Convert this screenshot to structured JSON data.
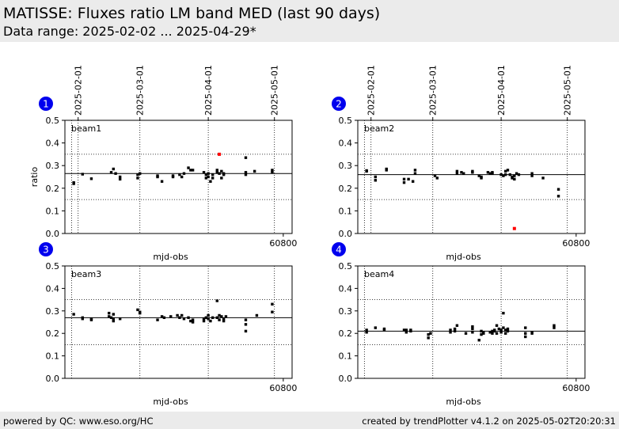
{
  "header": {
    "title": "MATISSE: Fluxes ratio LM band MED (last 90 days)",
    "subtitle": "Data range: 2025-02-02 ... 2025-04-29*"
  },
  "footer": {
    "left": "powered by QC: www.eso.org/HC",
    "right": "created by trendPlotter v4.1.2 on 2025-05-02T20:20:31"
  },
  "colors": {
    "header_bg": "#ebebeb",
    "badge": "#0000ee",
    "point": "#000000",
    "outlier": "#ff0000"
  },
  "chart_data": [
    {
      "type": "scatter",
      "badge": "1",
      "label": "beam1",
      "xlabel": "mjd-obs",
      "ylabel": "ratio",
      "xlim": [
        60701,
        60804
      ],
      "ylim": [
        0,
        0.5
      ],
      "yticks": [
        "0.0",
        "0.1",
        "0.2",
        "0.3",
        "0.4",
        "0.5"
      ],
      "xtick": {
        "value": 60800,
        "label": "60800"
      },
      "date_ticks": [
        {
          "mjd": 60707,
          "label": "2025-02-01"
        },
        {
          "mjd": 60735,
          "label": "2025-03-01"
        },
        {
          "mjd": 60766,
          "label": "2025-04-01"
        },
        {
          "mjd": 60796,
          "label": "2025-05-01"
        },
        {
          "mjd": 60704,
          "label": ""
        }
      ],
      "median": 0.265,
      "limits": [
        0.15,
        0.35
      ],
      "points": [
        [
          60705,
          0.225
        ],
        [
          60705,
          0.22
        ],
        [
          60709,
          0.262
        ],
        [
          60713,
          0.242
        ],
        [
          60722,
          0.27
        ],
        [
          60723,
          0.285
        ],
        [
          60724,
          0.265
        ],
        [
          60726,
          0.25
        ],
        [
          60726,
          0.24
        ],
        [
          60734,
          0.245
        ],
        [
          60734,
          0.26
        ],
        [
          60735,
          0.265
        ],
        [
          60743,
          0.255
        ],
        [
          60743,
          0.25
        ],
        [
          60745,
          0.23
        ],
        [
          60750,
          0.25
        ],
        [
          60750,
          0.255
        ],
        [
          60753,
          0.26
        ],
        [
          60754,
          0.25
        ],
        [
          60755,
          0.265
        ],
        [
          60757,
          0.29
        ],
        [
          60758,
          0.28
        ],
        [
          60759,
          0.28
        ],
        [
          60764,
          0.27
        ],
        [
          60765,
          0.26
        ],
        [
          60765,
          0.245
        ],
        [
          60766,
          0.265
        ],
        [
          60766,
          0.25
        ],
        [
          60767,
          0.23
        ],
        [
          60768,
          0.245
        ],
        [
          60768,
          0.26
        ],
        [
          60770,
          0.28
        ],
        [
          60770,
          0.27
        ],
        [
          60771,
          0.265
        ],
        [
          60772,
          0.245
        ],
        [
          60772,
          0.275
        ],
        [
          60773,
          0.26
        ],
        [
          60773,
          0.265
        ],
        [
          60783,
          0.335
        ],
        [
          60783,
          0.27
        ],
        [
          60783,
          0.26
        ],
        [
          60787,
          0.275
        ],
        [
          60795,
          0.28
        ],
        [
          60795,
          0.27
        ]
      ],
      "outliers": [
        [
          60771,
          0.35
        ]
      ]
    },
    {
      "type": "scatter",
      "badge": "2",
      "label": "beam2",
      "xlabel": "mjd-obs",
      "ylabel": "",
      "xlim": [
        60701,
        60804
      ],
      "ylim": [
        0,
        0.5
      ],
      "yticks": [
        "0.0",
        "0.1",
        "0.2",
        "0.3",
        "0.4",
        "0.5"
      ],
      "xtick": {
        "value": 60800,
        "label": "60800"
      },
      "date_ticks": [
        {
          "mjd": 60707,
          "label": "2025-02-01"
        },
        {
          "mjd": 60735,
          "label": "2025-03-01"
        },
        {
          "mjd": 60766,
          "label": "2025-04-01"
        },
        {
          "mjd": 60796,
          "label": "2025-05-01"
        },
        {
          "mjd": 60704,
          "label": ""
        }
      ],
      "median": 0.26,
      "limits": [
        0.15,
        0.35
      ],
      "points": [
        [
          60705,
          0.278
        ],
        [
          60705,
          0.275
        ],
        [
          60709,
          0.25
        ],
        [
          60709,
          0.235
        ],
        [
          60714,
          0.28
        ],
        [
          60714,
          0.285
        ],
        [
          60722,
          0.24
        ],
        [
          60722,
          0.225
        ],
        [
          60724,
          0.24
        ],
        [
          60726,
          0.23
        ],
        [
          60727,
          0.265
        ],
        [
          60727,
          0.28
        ],
        [
          60736,
          0.255
        ],
        [
          60737,
          0.245
        ],
        [
          60746,
          0.275
        ],
        [
          60746,
          0.265
        ],
        [
          60748,
          0.27
        ],
        [
          60749,
          0.265
        ],
        [
          60753,
          0.275
        ],
        [
          60753,
          0.27
        ],
        [
          60756,
          0.255
        ],
        [
          60757,
          0.25
        ],
        [
          60757,
          0.245
        ],
        [
          60760,
          0.27
        ],
        [
          60761,
          0.265
        ],
        [
          60762,
          0.27
        ],
        [
          60762,
          0.265
        ],
        [
          60766,
          0.26
        ],
        [
          60767,
          0.255
        ],
        [
          60768,
          0.275
        ],
        [
          60768,
          0.26
        ],
        [
          60769,
          0.28
        ],
        [
          60770,
          0.26
        ],
        [
          60771,
          0.25
        ],
        [
          60771,
          0.245
        ],
        [
          60772,
          0.255
        ],
        [
          60772,
          0.24
        ],
        [
          60773,
          0.265
        ],
        [
          60774,
          0.26
        ],
        [
          60780,
          0.265
        ],
        [
          60780,
          0.255
        ],
        [
          60785,
          0.245
        ],
        [
          60792,
          0.195
        ],
        [
          60792,
          0.165
        ]
      ],
      "outliers": [
        [
          60772,
          0.022
        ]
      ]
    },
    {
      "type": "scatter",
      "badge": "3",
      "label": "beam3",
      "xlabel": "mjd-obs",
      "ylabel": "",
      "xlim": [
        60701,
        60804
      ],
      "ylim": [
        0,
        0.5
      ],
      "yticks": [
        "0.0",
        "0.1",
        "0.2",
        "0.3",
        "0.4",
        "0.5"
      ],
      "xtick": {
        "value": 60800,
        "label": "60800"
      },
      "date_ticks": [
        {
          "mjd": 60704,
          "label": ""
        },
        {
          "mjd": 60735,
          "label": ""
        },
        {
          "mjd": 60766,
          "label": ""
        },
        {
          "mjd": 60796,
          "label": ""
        }
      ],
      "median": 0.27,
      "limits": [
        0.15,
        0.35
      ],
      "points": [
        [
          60705,
          0.285
        ],
        [
          60709,
          0.27
        ],
        [
          60709,
          0.265
        ],
        [
          60713,
          0.265
        ],
        [
          60713,
          0.26
        ],
        [
          60721,
          0.29
        ],
        [
          60721,
          0.275
        ],
        [
          60722,
          0.27
        ],
        [
          60723,
          0.285
        ],
        [
          60723,
          0.265
        ],
        [
          60723,
          0.255
        ],
        [
          60726,
          0.265
        ],
        [
          60734,
          0.305
        ],
        [
          60735,
          0.295
        ],
        [
          60735,
          0.29
        ],
        [
          60743,
          0.26
        ],
        [
          60745,
          0.275
        ],
        [
          60746,
          0.27
        ],
        [
          60749,
          0.275
        ],
        [
          60752,
          0.28
        ],
        [
          60753,
          0.27
        ],
        [
          60754,
          0.28
        ],
        [
          60755,
          0.265
        ],
        [
          60757,
          0.27
        ],
        [
          60758,
          0.255
        ],
        [
          60759,
          0.25
        ],
        [
          60759,
          0.26
        ],
        [
          60764,
          0.265
        ],
        [
          60764,
          0.255
        ],
        [
          60765,
          0.27
        ],
        [
          60766,
          0.28
        ],
        [
          60766,
          0.265
        ],
        [
          60767,
          0.255
        ],
        [
          60768,
          0.27
        ],
        [
          60770,
          0.345
        ],
        [
          60770,
          0.27
        ],
        [
          60771,
          0.28
        ],
        [
          60771,
          0.26
        ],
        [
          60772,
          0.275
        ],
        [
          60773,
          0.265
        ],
        [
          60773,
          0.255
        ],
        [
          60774,
          0.275
        ],
        [
          60783,
          0.26
        ],
        [
          60783,
          0.24
        ],
        [
          60783,
          0.21
        ],
        [
          60788,
          0.28
        ],
        [
          60795,
          0.33
        ],
        [
          60795,
          0.295
        ]
      ],
      "outliers": []
    },
    {
      "type": "scatter",
      "badge": "4",
      "label": "beam4",
      "xlabel": "mjd-obs",
      "ylabel": "",
      "xlim": [
        60701,
        60804
      ],
      "ylim": [
        0,
        0.5
      ],
      "yticks": [
        "0.0",
        "0.1",
        "0.2",
        "0.3",
        "0.4",
        "0.5"
      ],
      "xtick": {
        "value": 60800,
        "label": "60800"
      },
      "date_ticks": [
        {
          "mjd": 60704,
          "label": ""
        },
        {
          "mjd": 60735,
          "label": ""
        },
        {
          "mjd": 60766,
          "label": ""
        },
        {
          "mjd": 60796,
          "label": ""
        }
      ],
      "median": 0.21,
      "limits": [
        0.15,
        0.35
      ],
      "points": [
        [
          60705,
          0.215
        ],
        [
          60705,
          0.205
        ],
        [
          60709,
          0.225
        ],
        [
          60713,
          0.22
        ],
        [
          60713,
          0.215
        ],
        [
          60722,
          0.215
        ],
        [
          60723,
          0.205
        ],
        [
          60723,
          0.215
        ],
        [
          60725,
          0.215
        ],
        [
          60725,
          0.21
        ],
        [
          60733,
          0.195
        ],
        [
          60733,
          0.18
        ],
        [
          60734,
          0.2
        ],
        [
          60743,
          0.215
        ],
        [
          60743,
          0.205
        ],
        [
          60745,
          0.22
        ],
        [
          60745,
          0.21
        ],
        [
          60746,
          0.235
        ],
        [
          60750,
          0.2
        ],
        [
          60753,
          0.205
        ],
        [
          60753,
          0.22
        ],
        [
          60753,
          0.23
        ],
        [
          60756,
          0.17
        ],
        [
          60757,
          0.21
        ],
        [
          60757,
          0.195
        ],
        [
          60758,
          0.205
        ],
        [
          60758,
          0.2
        ],
        [
          60761,
          0.205
        ],
        [
          60762,
          0.21
        ],
        [
          60762,
          0.2
        ],
        [
          60763,
          0.215
        ],
        [
          60763,
          0.21
        ],
        [
          60764,
          0.2
        ],
        [
          60764,
          0.235
        ],
        [
          60765,
          0.22
        ],
        [
          60766,
          0.215
        ],
        [
          60766,
          0.205
        ],
        [
          60767,
          0.29
        ],
        [
          60767,
          0.225
        ],
        [
          60768,
          0.215
        ],
        [
          60768,
          0.2
        ],
        [
          60769,
          0.22
        ],
        [
          60769,
          0.21
        ],
        [
          60777,
          0.225
        ],
        [
          60777,
          0.2
        ],
        [
          60777,
          0.185
        ],
        [
          60780,
          0.205
        ],
        [
          60780,
          0.2
        ],
        [
          60790,
          0.235
        ],
        [
          60790,
          0.225
        ]
      ],
      "outliers": []
    }
  ]
}
